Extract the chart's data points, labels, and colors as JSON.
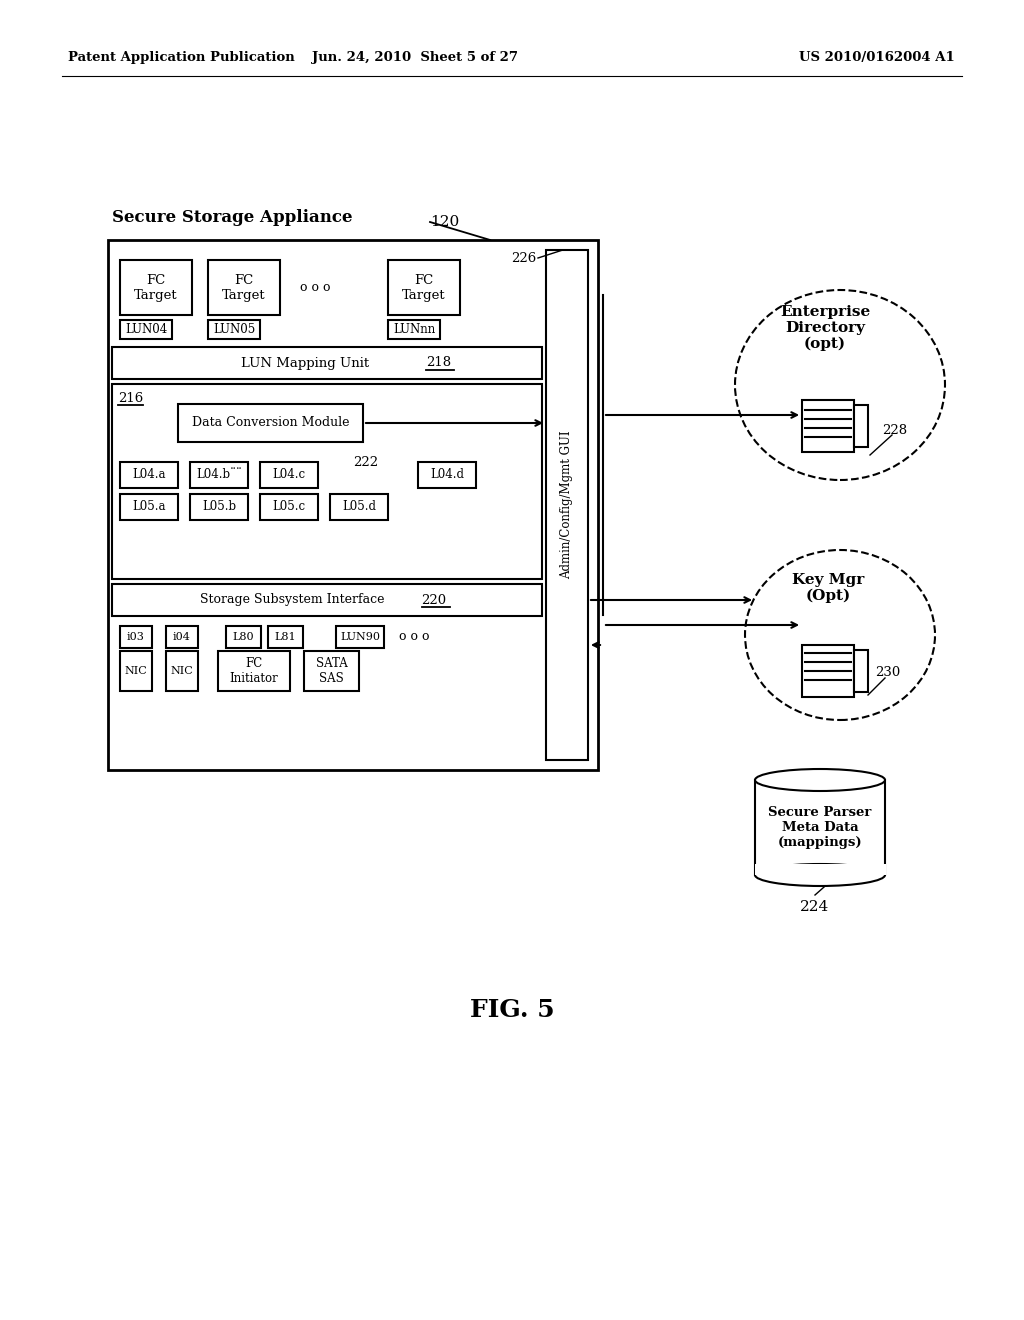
{
  "bg_color": "#ffffff",
  "header_left": "Patent Application Publication",
  "header_center": "Jun. 24, 2010  Sheet 5 of 27",
  "header_right": "US 2010/0162004 A1",
  "fig_label": "FIG. 5",
  "main_box_label": "Secure Storage Appliance",
  "main_box_num": "120",
  "admin_gui_label": "Admin/Config/Mgmt GUI",
  "admin_gui_num": "226",
  "lun_mapping_label": "LUN Mapping Unit",
  "lun_mapping_num": "218",
  "data_conv_label": "Data Conversion Module",
  "data_conv_num": "216",
  "arrow_num": "222",
  "storage_sub_label": "Storage Subsystem Interface",
  "storage_sub_num": "220",
  "fc_targets": [
    "FC\nTarget",
    "FC\nTarget",
    "FC\nTarget"
  ],
  "fc_dots": "o o o",
  "lun_labels": [
    "LUN04",
    "LUN05",
    "LUNnn"
  ],
  "l04_row": [
    "L04.a",
    "L04.b¨¨",
    "L04.c",
    "L04.d"
  ],
  "l05_row": [
    "L05.a",
    "L05.b",
    "L05.c",
    "L05.d"
  ],
  "bottom_row1": [
    "i03",
    "i04",
    "L80",
    "L81",
    "LUN90"
  ],
  "bottom_row2_nic": [
    "NIC",
    "NIC"
  ],
  "bottom_fc": "FC\nInitiator",
  "bottom_sata": "SATA\nSAS",
  "bottom_dots": "o o o",
  "enterprise_label": "Enterprise\nDirectory\n(opt)",
  "enterprise_num": "228",
  "key_mgr_label": "Key Mgr\n(Opt)",
  "key_mgr_num": "230",
  "secure_parser_label": "Secure Parser\nMeta Data\n(mappings)",
  "secure_parser_num": "224"
}
